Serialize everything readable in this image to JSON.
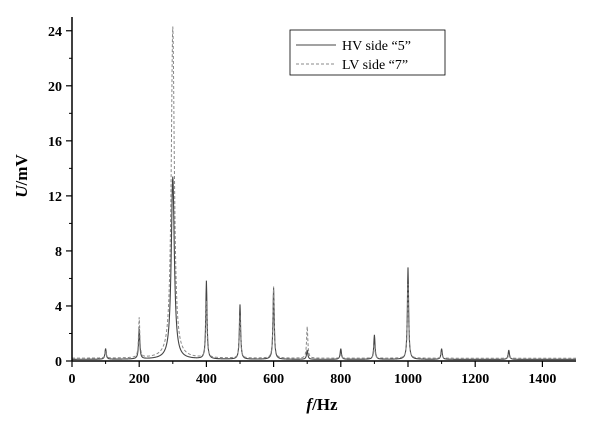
{
  "chart_data": {
    "type": "line",
    "xlabel": "f/Hz",
    "xlabel_italic": "f",
    "xlabel_rest": "/Hz",
    "ylabel": "U/mV",
    "ylabel_italic": "U",
    "ylabel_rest": "/mV",
    "xlim": [
      0,
      1500
    ],
    "ylim": [
      0,
      25
    ],
    "xticks": [
      0,
      200,
      400,
      600,
      800,
      1000,
      1200,
      1400
    ],
    "yticks": [
      0,
      4,
      8,
      12,
      16,
      20,
      24
    ],
    "grid": false,
    "legend_position": "top-right",
    "series": [
      {
        "name": "HV side “5”",
        "style": "solid",
        "color": "#444444",
        "baseline": 0.12,
        "peaks": [
          {
            "x": 100,
            "y": 0.9
          },
          {
            "x": 200,
            "y": 2.3
          },
          {
            "x": 300,
            "y": 13.4
          },
          {
            "x": 400,
            "y": 5.8
          },
          {
            "x": 500,
            "y": 4.1
          },
          {
            "x": 600,
            "y": 5.3
          },
          {
            "x": 700,
            "y": 0.8
          },
          {
            "x": 800,
            "y": 0.9
          },
          {
            "x": 900,
            "y": 1.9
          },
          {
            "x": 1000,
            "y": 6.8
          },
          {
            "x": 1100,
            "y": 0.9
          },
          {
            "x": 1300,
            "y": 0.8
          }
        ]
      },
      {
        "name": "LV side “7”",
        "style": "dashed",
        "color": "#888888",
        "baseline": 0.2,
        "peaks": [
          {
            "x": 100,
            "y": 0.7
          },
          {
            "x": 200,
            "y": 3.1
          },
          {
            "x": 300,
            "y": 24.3
          },
          {
            "x": 400,
            "y": 4.3
          },
          {
            "x": 500,
            "y": 3.3
          },
          {
            "x": 600,
            "y": 5.4
          },
          {
            "x": 700,
            "y": 2.5
          },
          {
            "x": 800,
            "y": 0.5
          },
          {
            "x": 900,
            "y": 1.2
          },
          {
            "x": 1000,
            "y": 5.6
          },
          {
            "x": 1100,
            "y": 0.6
          },
          {
            "x": 1300,
            "y": 0.4
          }
        ]
      }
    ]
  }
}
